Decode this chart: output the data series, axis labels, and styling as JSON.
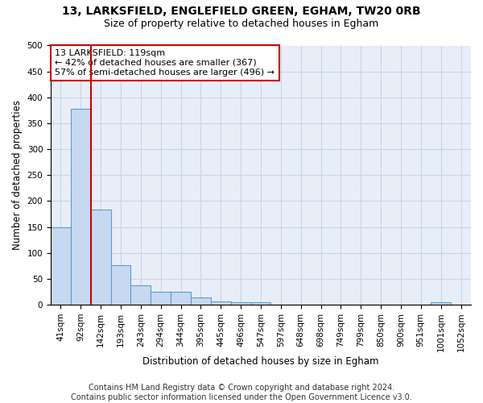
{
  "title1": "13, LARKSFIELD, ENGLEFIELD GREEN, EGHAM, TW20 0RB",
  "title2": "Size of property relative to detached houses in Egham",
  "xlabel": "Distribution of detached houses by size in Egham",
  "ylabel": "Number of detached properties",
  "bin_labels": [
    "41sqm",
    "92sqm",
    "142sqm",
    "193sqm",
    "243sqm",
    "294sqm",
    "344sqm",
    "395sqm",
    "445sqm",
    "496sqm",
    "547sqm",
    "597sqm",
    "648sqm",
    "698sqm",
    "749sqm",
    "799sqm",
    "850sqm",
    "900sqm",
    "951sqm",
    "1001sqm",
    "1052sqm"
  ],
  "bar_heights": [
    150,
    378,
    184,
    77,
    38,
    25,
    25,
    14,
    7,
    5,
    5,
    0,
    0,
    0,
    0,
    0,
    0,
    0,
    0,
    5,
    0
  ],
  "bar_color": "#c6d9f0",
  "bar_edge_color": "#5b9bd5",
  "vline_x_pos": 1.5,
  "vline_color": "#cc0000",
  "annotation_text": "13 LARKSFIELD: 119sqm\n← 42% of detached houses are smaller (367)\n57% of semi-detached houses are larger (496) →",
  "annotation_box_color": "#ffffff",
  "annotation_box_edge": "#cc0000",
  "ylim": [
    0,
    500
  ],
  "yticks": [
    0,
    50,
    100,
    150,
    200,
    250,
    300,
    350,
    400,
    450,
    500
  ],
  "footer": "Contains HM Land Registry data © Crown copyright and database right 2024.\nContains public sector information licensed under the Open Government Licence v3.0.",
  "bg_color": "#ffffff",
  "plot_bg_color": "#e8eef8",
  "grid_color": "#c8d4e8",
  "title_fontsize": 10,
  "subtitle_fontsize": 9,
  "axis_label_fontsize": 8.5,
  "tick_fontsize": 7.5,
  "annotation_fontsize": 8,
  "footer_fontsize": 7
}
